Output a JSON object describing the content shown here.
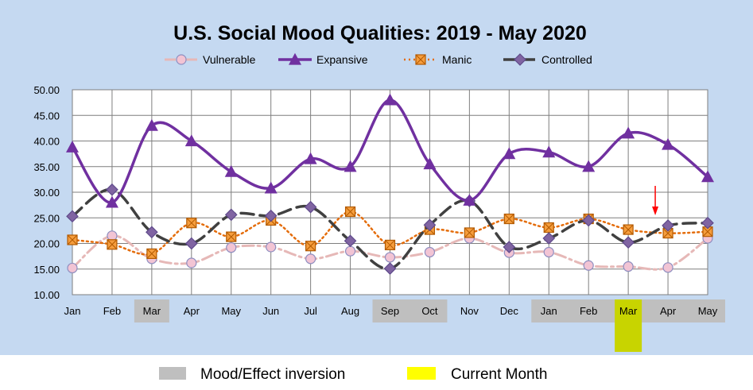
{
  "colors": {
    "background": "#c5d9f1",
    "plot_bg": "#ffffff",
    "grid": "#7f7f7f",
    "inversion_band": "#bfbfbf",
    "current_month": "#c8d400",
    "arrow": "#ff0000",
    "legend_current": "#ffff00"
  },
  "chart_data": {
    "type": "line",
    "title": "U.S. Social Mood Qualities:  2019 - May 2020",
    "categories": [
      "Jan",
      "Feb",
      "Mar",
      "Apr",
      "May",
      "Jun",
      "Jul",
      "Aug",
      "Sep",
      "Oct",
      "Nov",
      "Dec",
      "Jan",
      "Feb",
      "Mar",
      "Apr",
      "May"
    ],
    "ylim": [
      10,
      50
    ],
    "yticks": [
      "10.00",
      "15.00",
      "20.00",
      "25.00",
      "30.00",
      "35.00",
      "40.00",
      "45.00",
      "50.00"
    ],
    "grid": true,
    "legend_position": "top",
    "series": [
      {
        "name": "Vulnerable",
        "color": "#e6b8b7",
        "marker": "circle",
        "marker_fill": "#f2c4d4",
        "marker_stroke": "#8e8ec0",
        "style": "dash-dot",
        "values": [
          15.2,
          21.5,
          17.0,
          16.2,
          19.2,
          19.3,
          17.0,
          18.5,
          17.3,
          18.3,
          21.0,
          18.2,
          18.3,
          15.7,
          15.5,
          15.3,
          21.0
        ]
      },
      {
        "name": "Expansive",
        "color": "#7030a0",
        "marker": "triangle",
        "marker_fill": "#7030a0",
        "marker_stroke": "#7030a0",
        "style": "solid",
        "values": [
          38.8,
          28.0,
          43.0,
          40.0,
          34.0,
          30.8,
          36.5,
          35.0,
          48.0,
          35.5,
          28.4,
          37.5,
          37.8,
          35.0,
          41.5,
          39.3,
          33.0
        ]
      },
      {
        "name": "Manic",
        "color": "#e46c0a",
        "marker": "square",
        "marker_fill": "#f59d3d",
        "marker_stroke": "#b35a00",
        "style": "dotted",
        "values": [
          20.7,
          19.8,
          18.0,
          24.0,
          21.3,
          24.5,
          19.5,
          26.2,
          19.7,
          22.7,
          22.1,
          24.8,
          23.1,
          24.8,
          22.7,
          22.0,
          22.3
        ]
      },
      {
        "name": "Controlled",
        "color": "#404040",
        "marker": "diamond",
        "marker_fill": "#8064a2",
        "marker_stroke": "#5f4a8b",
        "style": "dashed",
        "values": [
          25.3,
          30.5,
          22.2,
          20.0,
          25.6,
          25.4,
          27.1,
          20.5,
          15.1,
          23.6,
          28.3,
          19.3,
          21.0,
          24.5,
          20.2,
          23.5,
          24.0
        ]
      }
    ],
    "inversion_months": [
      2,
      8,
      9,
      12,
      13,
      14,
      15,
      16
    ],
    "current_month": 14,
    "arrow_month": 15
  },
  "footer": {
    "inversion_label": "Mood/Effect inversion",
    "current_label": "Current Month"
  }
}
